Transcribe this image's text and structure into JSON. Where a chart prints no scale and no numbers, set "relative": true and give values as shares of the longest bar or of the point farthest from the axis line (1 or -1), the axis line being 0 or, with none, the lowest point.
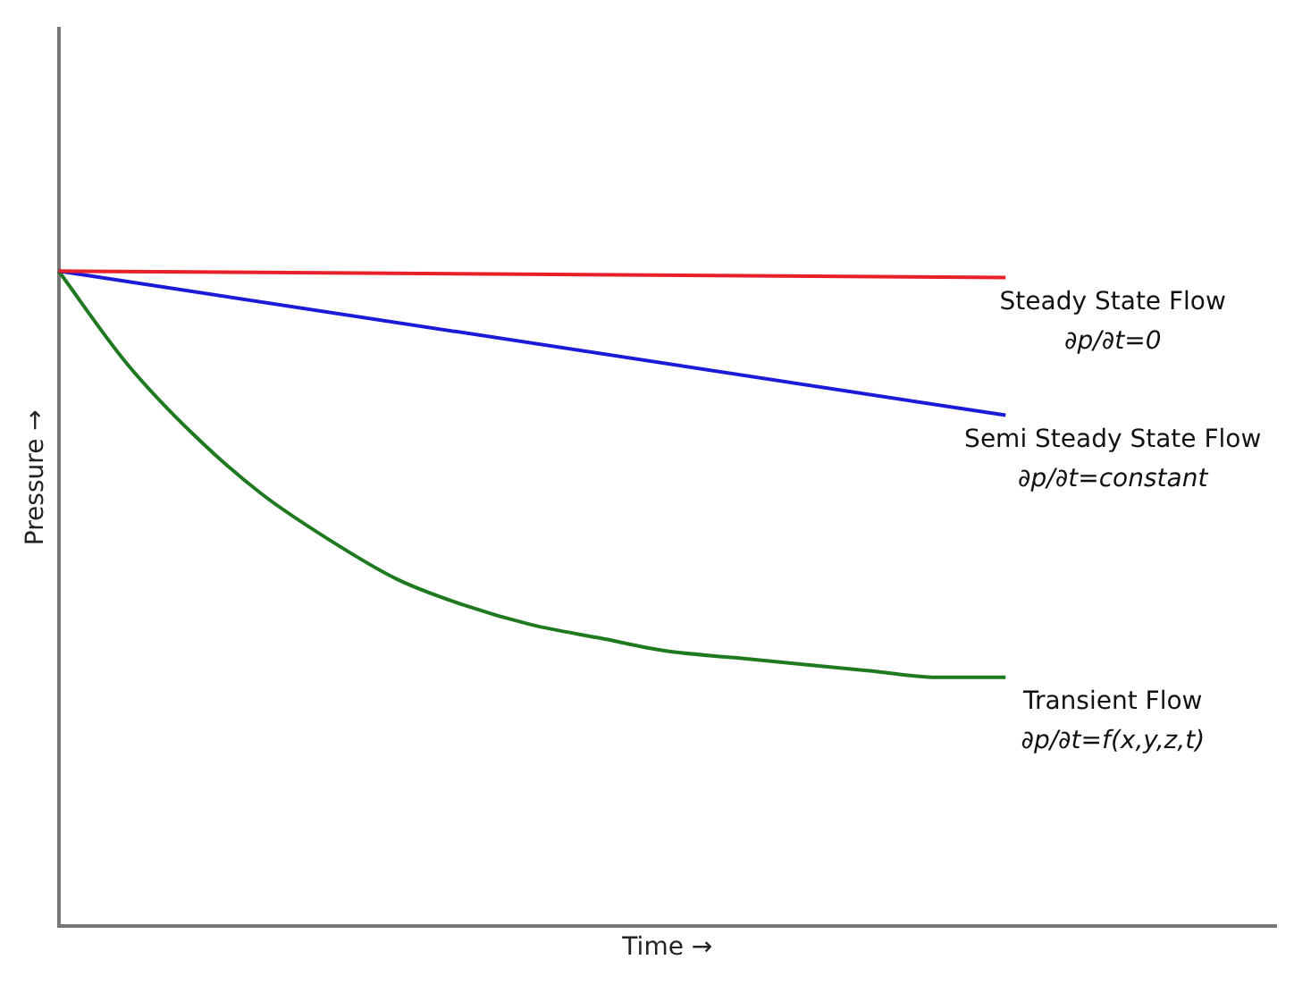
{
  "chart_data": {
    "type": "line",
    "relative": true,
    "xlabel": "Time →",
    "ylabel": "Pressure →",
    "grid": false,
    "legend": false,
    "marker": "none",
    "line_style": "solid",
    "categories": [
      null,
      null,
      null,
      null,
      null,
      null,
      null,
      null,
      null,
      null,
      null,
      null,
      null,
      null,
      null,
      null,
      null,
      null,
      null
    ],
    "series": [
      {
        "name": "Steady State Flow",
        "color": "#e8202a",
        "values": [
          1,
          null,
          null,
          null,
          null,
          null,
          null,
          null,
          null,
          null,
          null,
          null,
          null,
          null,
          0.99,
          null,
          null,
          null,
          null
        ]
      },
      {
        "name": "Semi Steady State Flow",
        "color": "#1a1ad8",
        "values": [
          1,
          null,
          null,
          null,
          null,
          null,
          null,
          null,
          null,
          null,
          null,
          null,
          null,
          null,
          0.78,
          null,
          null,
          null,
          null
        ]
      },
      {
        "name": "Transient Flow",
        "color": "#1f7a1f",
        "values": [
          1,
          0.86,
          0.75,
          0.66,
          0.59,
          0.53,
          0.49,
          0.46,
          0.44,
          0.42,
          0.41,
          0.4,
          0.39,
          0.38,
          0.38,
          null,
          null,
          null,
          null
        ]
      }
    ],
    "annotations": [
      "∂p/∂t=0",
      "∂p/∂t=constant",
      "∂p/∂t=f(x,y,z,t)"
    ]
  }
}
